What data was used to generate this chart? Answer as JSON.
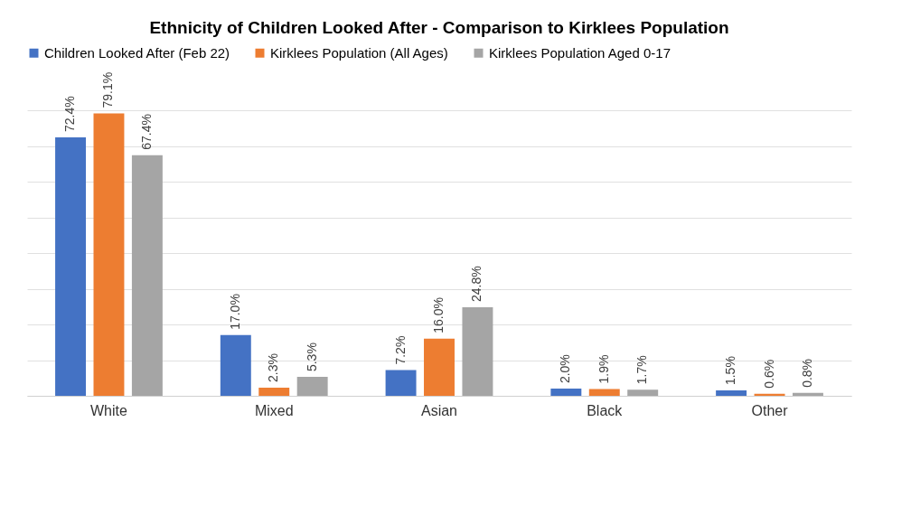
{
  "chart_data": {
    "type": "bar",
    "title": "Ethnicity of Children Looked After - Comparison to Kirklees Population",
    "categories": [
      "White",
      "Mixed",
      "Asian",
      "Black",
      "Other"
    ],
    "series": [
      {
        "name": "Children Looked After (Feb 22)",
        "color": "#4472c4",
        "values": [
          72.4,
          17.0,
          7.2,
          2.0,
          1.5
        ],
        "value_labels": [
          "72.4%",
          "17.0%",
          "7.2%",
          "2.0%",
          "1.5%"
        ]
      },
      {
        "name": "Kirklees Population (All Ages)",
        "color": "#ed7d31",
        "values": [
          79.1,
          2.3,
          16.0,
          1.9,
          0.6
        ],
        "value_labels": [
          "79.1%",
          "2.3%",
          "16.0%",
          "1.9%",
          "0.6%"
        ]
      },
      {
        "name": "Kirklees Population Aged 0-17",
        "color": "#a5a5a5",
        "values": [
          67.4,
          5.3,
          24.8,
          1.7,
          0.8
        ],
        "value_labels": [
          "67.4%",
          "5.3%",
          "24.8%",
          "1.7%",
          "0.8%"
        ]
      }
    ],
    "grid": "y",
    "legend": "top",
    "tick_labels": "x"
  }
}
